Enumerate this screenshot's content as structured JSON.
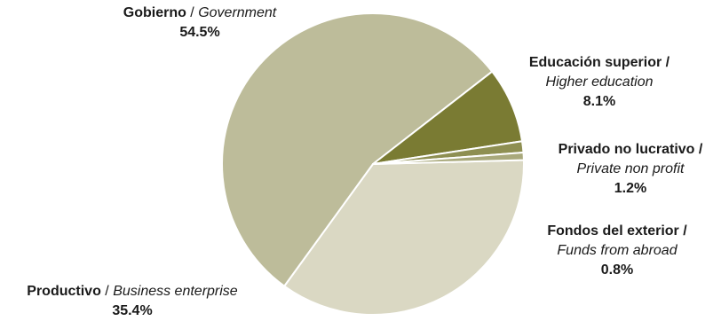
{
  "chart_data": {
    "type": "pie",
    "colors": [
      "#bdbc9a",
      "#7a7b33",
      "#8e8f52",
      "#a9a97c",
      "#dad8c3"
    ],
    "slices": [
      {
        "label_es": "Gobierno",
        "label_en": "Government",
        "value": 54.5,
        "pct_label": "54.5%"
      },
      {
        "label_es": "Educación superior /",
        "label_en": "Higher education",
        "value": 8.1,
        "pct_label": "8.1%"
      },
      {
        "label_es": "Privado no lucrativo /",
        "label_en": "Private non profit",
        "value": 1.2,
        "pct_label": "1.2%"
      },
      {
        "label_es": "Fondos del exterior /",
        "label_en": "Funds from abroad",
        "value": 0.8,
        "pct_label": "0.8%"
      },
      {
        "label_es": "Productivo",
        "label_en": "Business enterprise",
        "value": 35.4,
        "pct_label": "35.4%"
      }
    ],
    "separator": " / "
  }
}
